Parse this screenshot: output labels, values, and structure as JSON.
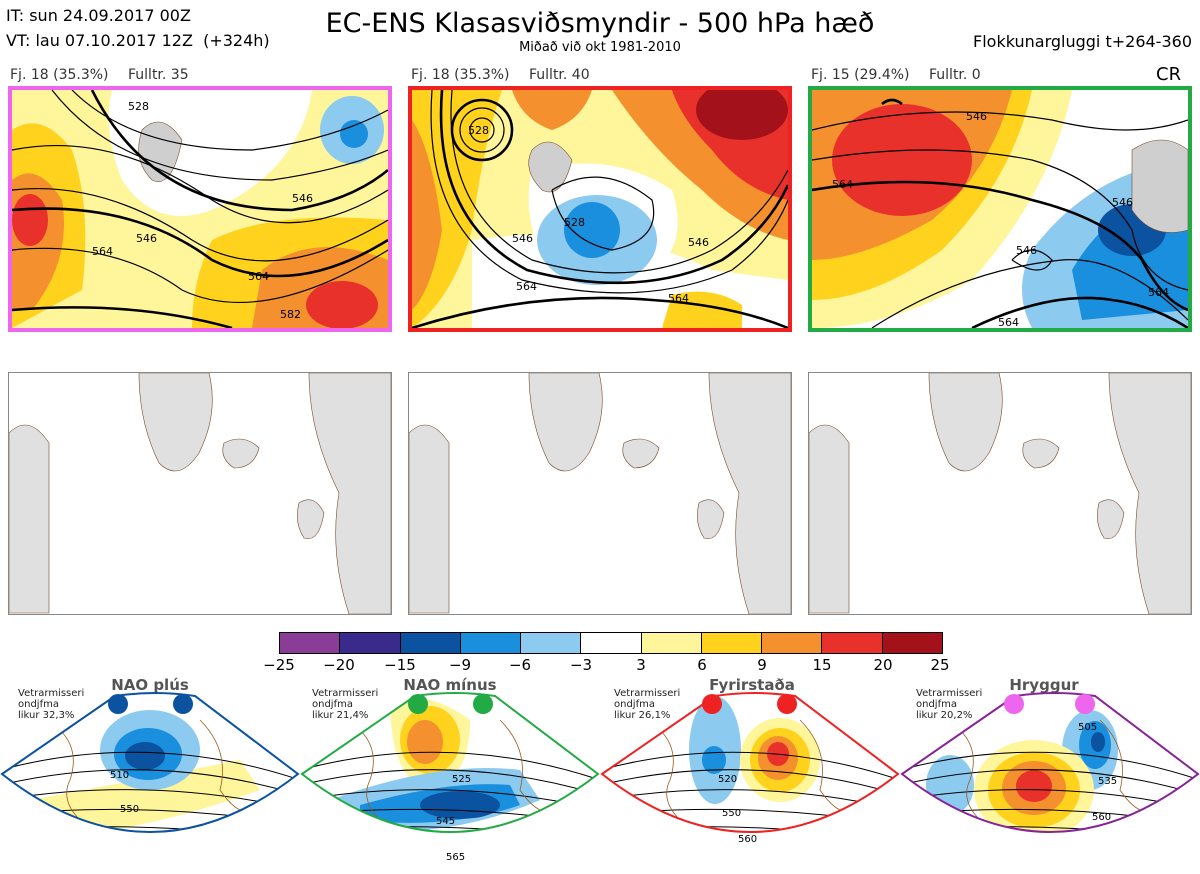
{
  "header": {
    "init_time": "IT: sun 24.09.2017 00Z",
    "valid_time": "VT: lau 07.10.2017 12Z  (+324h)",
    "title": "EC-ENS Klasasviðsmyndir - 500 hPa hæð",
    "subtitle": "Miðað við okt 1981-2010",
    "window": "Flokkunargluggi t+264-360"
  },
  "clusters": [
    {
      "count_label": "Fj. 18 (35.3%)",
      "rep_label": "Fulltr. 35",
      "border_color": "#ee66ee",
      "contours": [
        "528",
        "546",
        "546",
        "564",
        "564",
        "582"
      ]
    },
    {
      "count_label": "Fj. 18 (35.3%)",
      "rep_label": "Fulltr. 40",
      "border_color": "#ee2222",
      "contours": [
        "528",
        "528",
        "546",
        "546",
        "564",
        "564"
      ]
    },
    {
      "count_label": "Fj. 15 (29.4%)",
      "rep_label": "Fulltr. 0",
      "border_color": "#22aa44",
      "contours": [
        "546",
        "546",
        "564",
        "546",
        "564",
        "564"
      ]
    }
  ],
  "cr_label": "CR",
  "colorbar": {
    "ticks": [
      "−25",
      "−20",
      "−15",
      "−9",
      "−6",
      "−3",
      "3",
      "6",
      "9",
      "15",
      "20",
      "25"
    ],
    "colors": [
      "#8a3d96",
      "#3a2a8c",
      "#0b52a0",
      "#1a8fdd",
      "#8ccaf0",
      "#ffffff",
      "#fff59a",
      "#ffd21e",
      "#f5902e",
      "#e8312a",
      "#a3121a"
    ]
  },
  "regimes": [
    {
      "name": "NAO plús",
      "note": "Vetrarmisseri\nondjfma\nlikur 32,3%",
      "outline_color": "#0b52a0",
      "dot_color": "#0b52a0",
      "contours": [
        "510",
        "550"
      ]
    },
    {
      "name": "NAO mínus",
      "note": "Vetrarmisseri\nondjfma\nlikur 21,4%",
      "outline_color": "#22aa44",
      "dot_color": "#22aa44",
      "contours": [
        "525",
        "545",
        "565"
      ]
    },
    {
      "name": "Fyrirstaða",
      "note": "Vetrarmisseri\nondjfma\nlikur 26,1%",
      "outline_color": "#ee2222",
      "dot_color": "#ee2222",
      "contours": [
        "520",
        "550",
        "560"
      ]
    },
    {
      "name": "Hryggur",
      "note": "Vetrarmisseri\nondjfma\nlikur 20,2%",
      "outline_color": "#882299",
      "dot_color": "#ee66ee",
      "contours": [
        "505",
        "535",
        "560"
      ]
    }
  ]
}
